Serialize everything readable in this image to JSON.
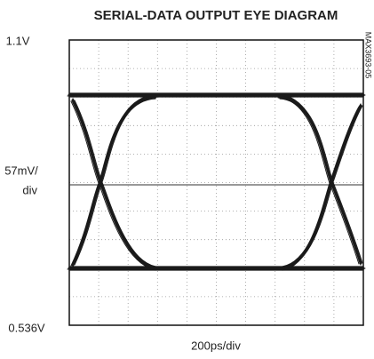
{
  "title": "SERIAL-DATA OUTPUT EYE DIAGRAM",
  "labels": {
    "top": "1.1V",
    "scale": [
      "57mV/",
      "div"
    ],
    "bottom": "0.536V",
    "x": "200ps/div",
    "figure_id": "MAX3693-05"
  }
}
